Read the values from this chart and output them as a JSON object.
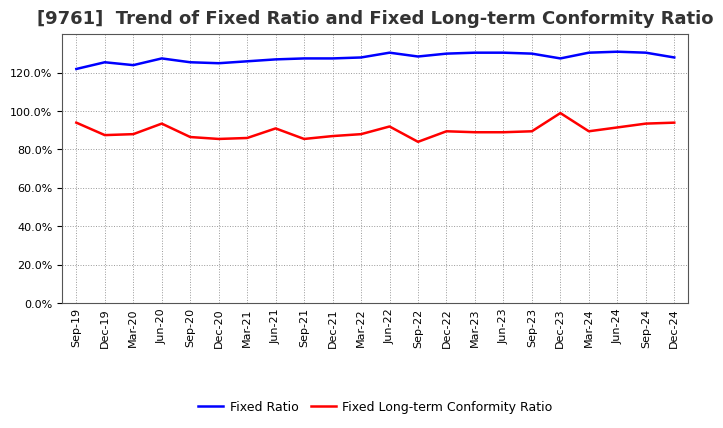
{
  "title": "[9761]  Trend of Fixed Ratio and Fixed Long-term Conformity Ratio",
  "x_labels": [
    "Sep-19",
    "Dec-19",
    "Mar-20",
    "Jun-20",
    "Sep-20",
    "Dec-20",
    "Mar-21",
    "Jun-21",
    "Sep-21",
    "Dec-21",
    "Mar-22",
    "Jun-22",
    "Sep-22",
    "Dec-22",
    "Mar-23",
    "Jun-23",
    "Sep-23",
    "Dec-23",
    "Mar-24",
    "Jun-24",
    "Sep-24",
    "Dec-24"
  ],
  "fixed_ratio": [
    122.0,
    125.5,
    124.0,
    127.5,
    125.5,
    125.0,
    126.0,
    127.0,
    127.5,
    127.5,
    128.0,
    130.5,
    128.5,
    130.0,
    130.5,
    130.5,
    130.0,
    127.5,
    130.5,
    131.0,
    130.5,
    128.0
  ],
  "fixed_ltcr": [
    94.0,
    87.5,
    88.0,
    93.5,
    86.5,
    85.5,
    86.0,
    91.0,
    85.5,
    87.0,
    88.0,
    92.0,
    84.0,
    89.5,
    89.0,
    89.0,
    89.5,
    99.0,
    89.5,
    91.5,
    93.5,
    94.0
  ],
  "fixed_ratio_color": "#0000FF",
  "fixed_ltcr_color": "#FF0000",
  "ylim": [
    0,
    140
  ],
  "yticks": [
    0,
    20,
    40,
    60,
    80,
    100,
    120
  ],
  "background_color": "#FFFFFF",
  "grid_color": "#999999",
  "legend_fixed_ratio": "Fixed Ratio",
  "legend_fixed_ltcr": "Fixed Long-term Conformity Ratio",
  "title_fontsize": 13,
  "tick_fontsize": 8,
  "legend_fontsize": 9
}
